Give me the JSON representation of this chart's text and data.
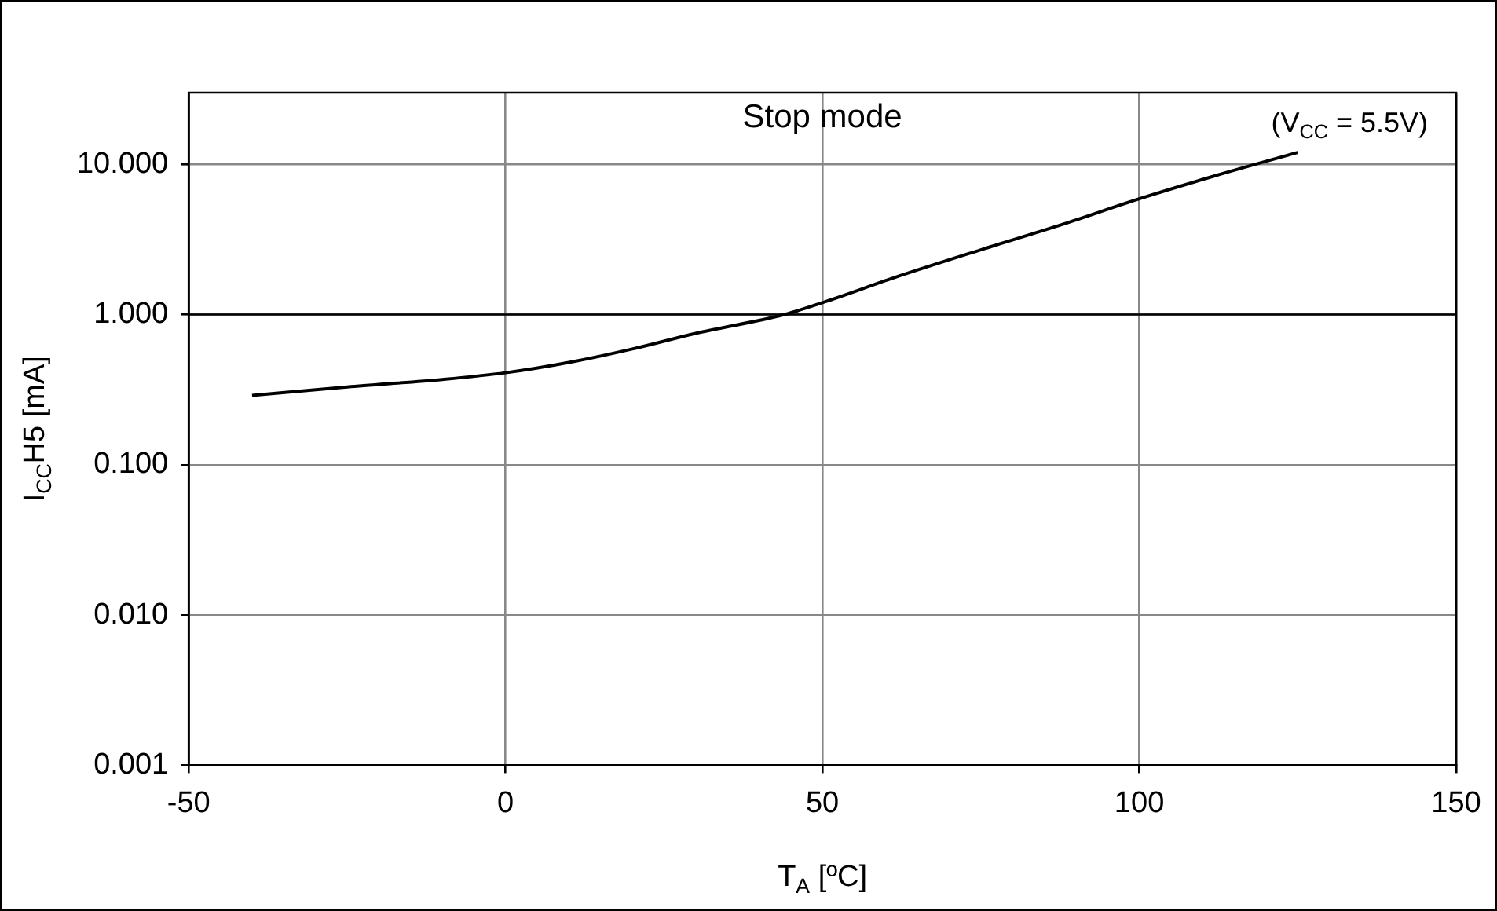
{
  "chart_data": {
    "type": "line",
    "title": "Stop mode",
    "xlabel": "T$_{A}$ [ºC]",
    "ylabel": "I$_{CC}$H5 [mA]",
    "annotations": [
      "(V$_{CC}$ = 5.5V)"
    ],
    "series": [
      {
        "color": "#000000",
        "x": [
          -40,
          -25,
          -10,
          0,
          10,
          20,
          30,
          44,
          50,
          62,
          75,
          88,
          100,
          112,
          125
        ],
        "values": [
          0.29,
          0.33,
          0.37,
          0.41,
          0.48,
          0.59,
          0.75,
          1.0,
          1.2,
          1.8,
          2.7,
          4.0,
          5.9,
          8.4,
          12.0
        ]
      }
    ],
    "xlim": [
      -50,
      150
    ],
    "xticks": [
      -50,
      0,
      50,
      100,
      150
    ],
    "ylim": [
      0.001,
      30
    ],
    "yticks": [
      {
        "value": 0.001,
        "label": "0.001"
      },
      {
        "value": 0.01,
        "label": "0.010"
      },
      {
        "value": 0.1,
        "label": "0.100"
      },
      {
        "value": 1,
        "label": "1.000"
      },
      {
        "value": 10,
        "label": "10.000"
      }
    ],
    "log": "y",
    "grid": true,
    "legend": false,
    "marker": "none",
    "line_style": "solid",
    "ref_lines": [
      {
        "axis": "y",
        "value": 1,
        "color": "#000000"
      }
    ]
  }
}
